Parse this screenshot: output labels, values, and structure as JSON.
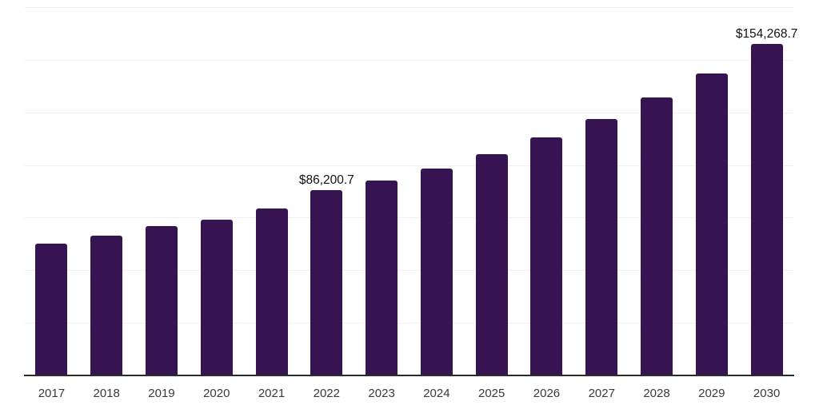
{
  "chart_data": {
    "type": "bar",
    "title": "",
    "xlabel": "",
    "ylabel": "",
    "categories": [
      "2017",
      "2018",
      "2019",
      "2020",
      "2021",
      "2022",
      "2023",
      "2024",
      "2025",
      "2026",
      "2027",
      "2028",
      "2029",
      "2030"
    ],
    "values": [
      61400,
      65100,
      69600,
      72500,
      77700,
      86200.7,
      90800,
      96400,
      103000,
      110900,
      119400,
      129500,
      140600,
      154268.7
    ],
    "value_labels": [
      {
        "category": "2022",
        "text": "$86,200.7"
      },
      {
        "category": "2030",
        "text": "$154,268.7"
      }
    ],
    "ylim": [
      0,
      171500
    ],
    "y_axis_labels_visible": false,
    "grid": "horizontal",
    "gridline_count": 7,
    "legend": "none",
    "colors": {
      "bar": "#361351",
      "gridline": "#f2f2f4",
      "axis_line": "#2b2b2b",
      "tick_label": "#3a3a3a",
      "data_label": "#111111",
      "background": "#ffffff"
    }
  }
}
